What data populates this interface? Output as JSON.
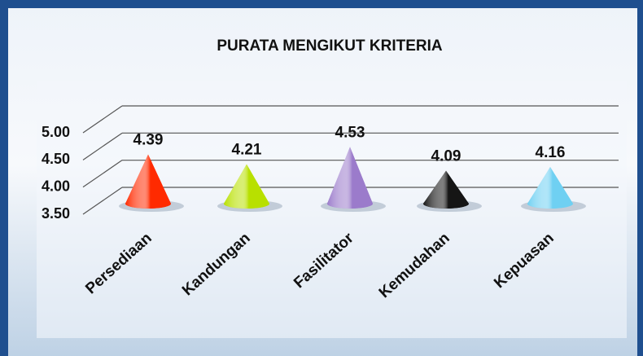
{
  "chart_data": {
    "type": "cone",
    "title": "PURATA MENGIKUT KRITERIA",
    "categories": [
      "Persediaan",
      "Kandungan",
      "Fasilitator",
      "Kemudahan",
      "Kepuasan"
    ],
    "values": [
      4.39,
      4.21,
      4.53,
      4.09,
      4.16
    ],
    "colors": [
      "#ff2a00",
      "#b8e000",
      "#9b7bcb",
      "#151515",
      "#6fd0f2"
    ],
    "ylim": [
      3.5,
      5.0
    ],
    "yticks": [
      {
        "value": 3.5,
        "label": "3.50"
      },
      {
        "value": 4.0,
        "label": "4.00"
      },
      {
        "value": 4.5,
        "label": "4.50"
      },
      {
        "value": 5.0,
        "label": "5.00"
      }
    ],
    "grid": true
  }
}
